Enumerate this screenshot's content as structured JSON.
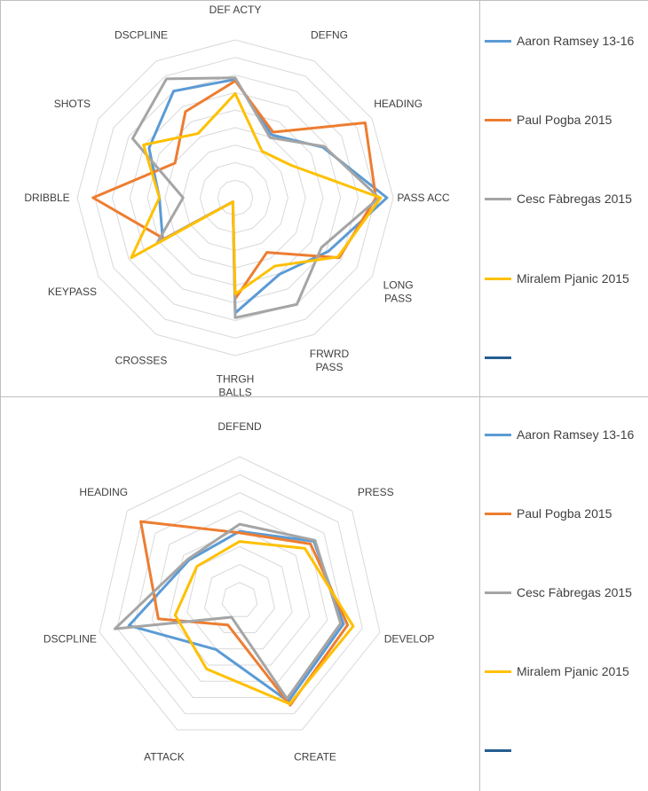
{
  "colors": {
    "ramsey": "#5b9bd5",
    "pogba": "#ed7d31",
    "fabregas": "#a5a5a5",
    "pjanic": "#ffc000",
    "extra": "#255e91",
    "grid": "#d9d9d9"
  },
  "chart_data": [
    {
      "type": "radar",
      "title": "",
      "axes": [
        "DEF ACTY",
        "DEFNG",
        "HEADING",
        "PASS ACC",
        "LONG PASS",
        "FRWRD PASS",
        "THRGH BALLS",
        "CROSSES",
        "KEYPASS",
        "DRIBBLE",
        "SHOTS",
        "DSCPLINE"
      ],
      "axis_label_lines": [
        [
          "DEF ACTY"
        ],
        [
          "DEFNG"
        ],
        [
          "HEADING"
        ],
        [
          "PASS ACC"
        ],
        [
          "LONG",
          "PASS"
        ],
        [
          "FRWRD",
          "PASS"
        ],
        [
          "THRGH",
          "BALLS"
        ],
        [
          "CROSSES"
        ],
        [
          "KEYPASS"
        ],
        [
          "DRIBBLE"
        ],
        [
          "SHOTS"
        ],
        [
          "DSCPLINE"
        ]
      ],
      "rmax": 10,
      "rings": 9,
      "series": [
        {
          "name": "Aaron Ramsey 13-16",
          "color_key": "ramsey",
          "values": [
            7.5,
            4.6,
            6.4,
            9.6,
            6.8,
            5.6,
            7.3,
            0.3,
            5.3,
            4.8,
            6.3,
            7.8
          ]
        },
        {
          "name": "Paul Pogba 2015",
          "color_key": "pogba",
          "values": [
            7.4,
            4.8,
            9.5,
            8.9,
            7.6,
            4.0,
            6.4,
            0.3,
            5.2,
            9.0,
            4.4,
            6.3
          ]
        },
        {
          "name": "Cesc Fàbregas 2015",
          "color_key": "fabregas",
          "values": [
            7.6,
            4.4,
            6.5,
            9.1,
            6.3,
            7.8,
            7.6,
            0.3,
            5.7,
            3.3,
            7.5,
            8.7
          ]
        },
        {
          "name": "Miralem Pjanic 2015",
          "color_key": "pjanic",
          "values": [
            6.6,
            3.4,
            4.1,
            9.2,
            7.5,
            5.0,
            6.1,
            0.3,
            7.6,
            4.8,
            6.7,
            4.7
          ]
        }
      ]
    },
    {
      "type": "radar",
      "title": "",
      "axes": [
        "DEFEND",
        "PRESS",
        "DEVELOP",
        "CREATE",
        "ATTACK",
        "DSCPLINE",
        "HEADING"
      ],
      "axis_label_lines": [
        [
          "DEFEND"
        ],
        [
          "PRESS"
        ],
        [
          "DEVELOP"
        ],
        [
          "CREATE"
        ],
        [
          "ATTACK"
        ],
        [
          "DSCPLINE"
        ],
        [
          "HEADING"
        ]
      ],
      "rmax": 10,
      "rings": 8,
      "series": [
        {
          "name": "Aaron Ramsey 13-16",
          "color_key": "ramsey",
          "values": [
            4.8,
            6.6,
            7.4,
            7.8,
            3.8,
            7.9,
            4.5
          ]
        },
        {
          "name": "Paul Pogba 2015",
          "color_key": "pogba",
          "values": [
            4.7,
            6.3,
            7.7,
            8.1,
            1.9,
            5.8,
            8.8
          ]
        },
        {
          "name": "Cesc Fàbregas 2015",
          "color_key": "fabregas",
          "values": [
            5.3,
            6.7,
            7.2,
            7.6,
            1.3,
            8.9,
            4.6
          ]
        },
        {
          "name": "Miralem Pjanic 2015",
          "color_key": "pjanic",
          "values": [
            4.1,
            5.8,
            8.1,
            8.0,
            5.3,
            4.6,
            3.8
          ]
        }
      ]
    }
  ],
  "legend_top": [
    "Aaron Ramsey 13-16",
    "Paul Pogba 2015",
    "Cesc Fàbregas 2015",
    "Miralem Pjanic 2015",
    ""
  ],
  "legend_bottom": [
    "Aaron Ramsey 13-16",
    "Paul Pogba 2015",
    "Cesc Fàbregas 2015",
    "Miralem Pjanic 2015",
    ""
  ]
}
